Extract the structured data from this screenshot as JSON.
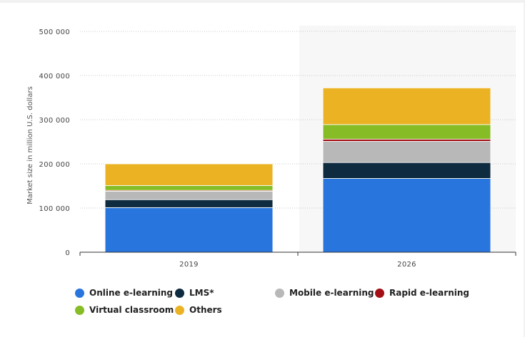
{
  "chart_data": {
    "type": "bar",
    "stacked": true,
    "categories": [
      "2019",
      "2026"
    ],
    "series": [
      {
        "name": "Online e-learning",
        "color": "#2876dd",
        "values": [
          101000,
          167000
        ]
      },
      {
        "name": "LMS*",
        "color": "#0f2b3f",
        "values": [
          18000,
          36000
        ]
      },
      {
        "name": "Mobile e-learning",
        "color": "#b8b8b8",
        "values": [
          19000,
          48000
        ]
      },
      {
        "name": "Rapid e-learning",
        "color": "#a30f14",
        "values": [
          2000,
          5000
        ]
      },
      {
        "name": "Virtual classroom",
        "color": "#86bc25",
        "values": [
          11000,
          33000
        ]
      },
      {
        "name": "Others",
        "color": "#ebb324",
        "values": [
          49000,
          83000
        ]
      }
    ],
    "ylabel": "Market size in million U.S. dollars",
    "xlabel": "",
    "ylim": [
      0,
      500000
    ],
    "yticks": [
      0,
      100000,
      200000,
      300000,
      400000,
      500000
    ],
    "ytick_labels": [
      "0",
      "100 000",
      "200 000",
      "300 000",
      "400 000",
      "500 000"
    ],
    "grid": true,
    "highlighted_category": "2026",
    "legend_position": "bottom-left"
  }
}
